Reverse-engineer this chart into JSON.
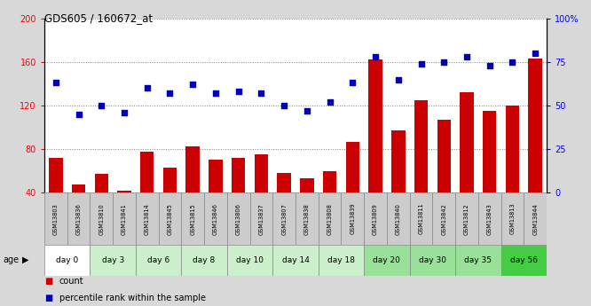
{
  "title": "GDS605 / 160672_at",
  "samples": [
    "GSM13803",
    "GSM13836",
    "GSM13810",
    "GSM13841",
    "GSM13814",
    "GSM13845",
    "GSM13815",
    "GSM13846",
    "GSM13806",
    "GSM13837",
    "GSM13807",
    "GSM13838",
    "GSM13808",
    "GSM13839",
    "GSM13809",
    "GSM13840",
    "GSM13811",
    "GSM13842",
    "GSM13812",
    "GSM13843",
    "GSM13813",
    "GSM13844"
  ],
  "counts": [
    72,
    48,
    57,
    42,
    78,
    63,
    83,
    70,
    72,
    75,
    58,
    53,
    60,
    87,
    162,
    97,
    125,
    107,
    132,
    115,
    120,
    163
  ],
  "percentiles": [
    63,
    45,
    50,
    46,
    60,
    57,
    62,
    57,
    58,
    57,
    50,
    47,
    52,
    63,
    78,
    65,
    74,
    75,
    78,
    73,
    75,
    80
  ],
  "bar_color": "#cc0000",
  "dot_color": "#0000bb",
  "left_ylim": [
    40,
    200
  ],
  "right_ylim": [
    0,
    100
  ],
  "left_yticks": [
    40,
    80,
    120,
    160,
    200
  ],
  "right_yticks": [
    0,
    25,
    50,
    75,
    100
  ],
  "right_yticklabels": [
    "0",
    "25",
    "50",
    "75",
    "100%"
  ],
  "background_color": "#d8d8d8",
  "plot_bg": "#ffffff",
  "sample_row_color": "#cccccc",
  "day_groups": [
    [
      0,
      1,
      "day 0",
      "#ffffff"
    ],
    [
      2,
      3,
      "day 3",
      "#ccf0cc"
    ],
    [
      4,
      5,
      "day 6",
      "#ccf0cc"
    ],
    [
      6,
      7,
      "day 8",
      "#ccf0cc"
    ],
    [
      8,
      9,
      "day 10",
      "#ccf0cc"
    ],
    [
      10,
      11,
      "day 14",
      "#ccf0cc"
    ],
    [
      12,
      13,
      "day 18",
      "#ccf0cc"
    ],
    [
      14,
      15,
      "day 20",
      "#99e099"
    ],
    [
      16,
      17,
      "day 30",
      "#99e099"
    ],
    [
      18,
      19,
      "day 35",
      "#99e099"
    ],
    [
      20,
      21,
      "day 56",
      "#44cc44"
    ]
  ]
}
